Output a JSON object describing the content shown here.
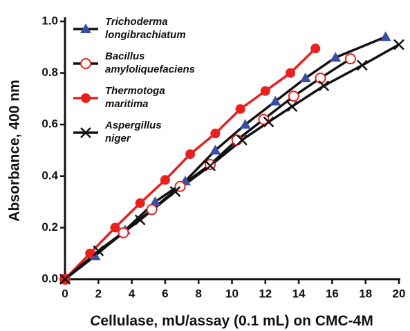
{
  "chart_data": {
    "type": "line",
    "x_label": "Cellulase, mU/assay (0.1 mL) on CMC-4M",
    "y_label": "Absorbance, 400 nm",
    "xlim": [
      0,
      20
    ],
    "ylim": [
      0,
      1.0
    ],
    "xticks": [
      0,
      2,
      4,
      6,
      8,
      10,
      12,
      14,
      16,
      18,
      20
    ],
    "yticks": [
      {
        "value": 0,
        "label": "0.0"
      },
      0.2,
      0.4,
      0.6,
      0.8,
      {
        "value": 1.0,
        "label": "1.0"
      }
    ],
    "legend": "upper left",
    "series": [
      {
        "name": "Trichoderma longibrachiatum",
        "color": "#3a4fa3",
        "line_color": "#111111",
        "marker": "triangle",
        "x": [
          0,
          1.8,
          3.6,
          5.4,
          7.2,
          9.0,
          10.8,
          12.6,
          14.4,
          16.2,
          19.2
        ],
        "values": [
          0,
          0.09,
          0.19,
          0.3,
          0.38,
          0.5,
          0.6,
          0.69,
          0.78,
          0.86,
          0.94
        ]
      },
      {
        "name": "Bacillus amyloliquefaciens",
        "color": "#e8201e",
        "line_color": "#111111",
        "marker": "circle-open",
        "x": [
          0,
          3.5,
          5.2,
          6.9,
          8.7,
          10.3,
          11.9,
          13.7,
          15.3,
          17.1
        ],
        "values": [
          0,
          0.18,
          0.27,
          0.36,
          0.445,
          0.54,
          0.62,
          0.71,
          0.78,
          0.855
        ]
      },
      {
        "name": "Thermotoga maritima",
        "color": "#e8201e",
        "line_color": "#e8201e",
        "marker": "circle",
        "x": [
          0,
          1.5,
          3.0,
          4.5,
          6.0,
          7.5,
          9.0,
          10.5,
          12.0,
          13.5,
          15.0
        ],
        "values": [
          0,
          0.1,
          0.2,
          0.295,
          0.385,
          0.485,
          0.565,
          0.66,
          0.73,
          0.8,
          0.895
        ]
      },
      {
        "name": "Aspergillus niger",
        "color": "#111111",
        "line_color": "#111111",
        "marker": "x",
        "x": [
          0,
          2.0,
          4.5,
          6.6,
          8.7,
          10.6,
          12.2,
          13.6,
          15.5,
          17.8,
          20.0
        ],
        "values": [
          0,
          0.11,
          0.23,
          0.34,
          0.44,
          0.54,
          0.61,
          0.67,
          0.75,
          0.83,
          0.91
        ]
      }
    ]
  }
}
